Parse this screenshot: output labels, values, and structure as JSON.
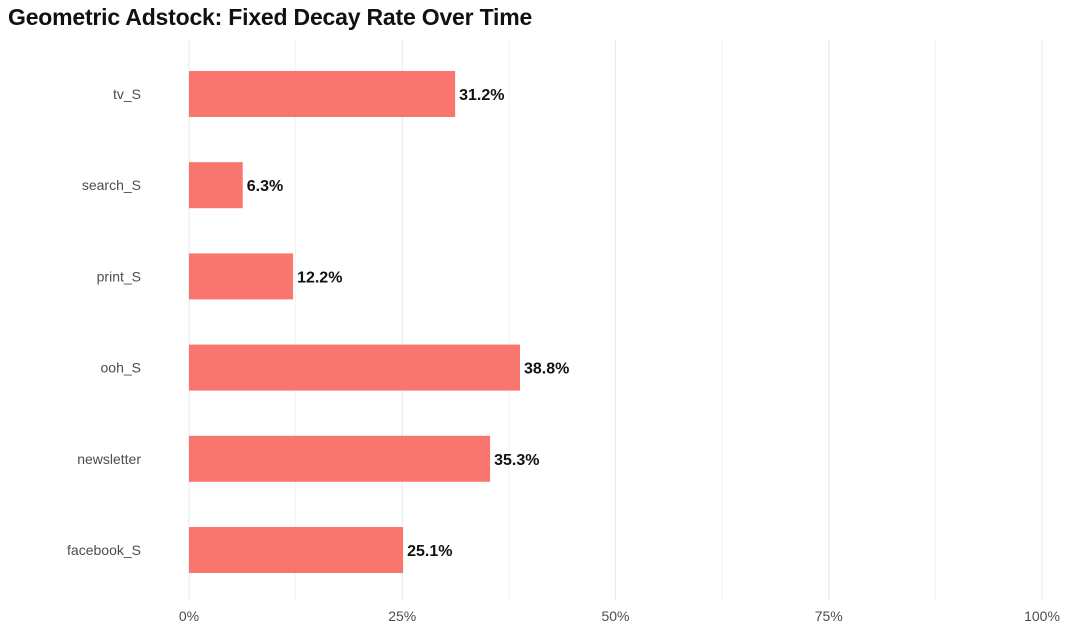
{
  "chart_data": {
    "type": "bar",
    "orientation": "horizontal",
    "title": "Geometric Adstock: Fixed Decay Rate Over Time",
    "xlabel": "",
    "ylabel": "",
    "categories": [
      "tv_S",
      "search_S",
      "print_S",
      "ooh_S",
      "newsletter",
      "facebook_S"
    ],
    "values": [
      31.2,
      6.3,
      12.2,
      38.8,
      35.3,
      25.1
    ],
    "value_labels": [
      "31.2%",
      "6.3%",
      "12.2%",
      "38.8%",
      "35.3%",
      "25.1%"
    ],
    "xlim": [
      0,
      100
    ],
    "x_ticks": [
      0,
      25,
      50,
      75,
      100
    ],
    "x_tick_labels": [
      "0%",
      "25%",
      "50%",
      "75%",
      "100%"
    ],
    "grid": true,
    "legend": "none",
    "bar_color": "#F8766D",
    "grid_color": "#EBEBEB"
  }
}
